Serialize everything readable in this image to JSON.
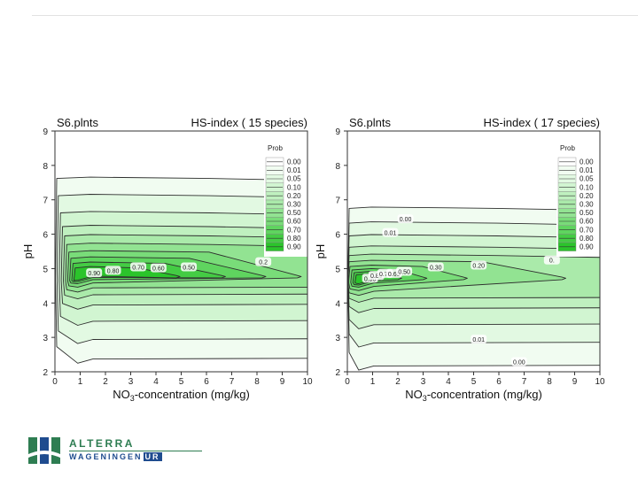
{
  "chart_data": [
    {
      "type": "contour",
      "panel_label": "S6.plnts",
      "title": "HS-index ( 15 species)",
      "xlabel_prefix": "NO",
      "xlabel_sub": "3",
      "xlabel_suffix": "-concentration (mg/kg)",
      "ylabel": "pH",
      "xlim": [
        0,
        10
      ],
      "ylim": [
        2,
        9
      ],
      "x_ticks": [
        "0",
        "1",
        "2",
        "3",
        "4",
        "5",
        "6",
        "7",
        "8",
        "9",
        "10"
      ],
      "y_ticks": [
        "2",
        "3",
        "4",
        "5",
        "6",
        "7",
        "8",
        "9"
      ],
      "peak": [
        1.0,
        4.65
      ],
      "legend_title": "Prob",
      "legend_levels": [
        "0.00",
        "0.01",
        "0.05",
        "0.10",
        "0.20",
        "0.30",
        "0.50",
        "0.60",
        "0.70",
        "0.80",
        "0.90"
      ],
      "legend_colors": [
        "#ffffff",
        "#f1fcf1",
        "#e2f9e2",
        "#d1f5d1",
        "#bff0bf",
        "#aaeaaa",
        "#92e392",
        "#79dc79",
        "#5fd45f",
        "#44cc44",
        "#2bc42b"
      ],
      "band_tops": [
        7.62,
        7.12,
        6.62,
        6.22,
        5.95,
        5.7,
        5.48,
        5.3,
        5.15,
        5.02
      ],
      "band_bottoms": [
        2.25,
        2.82,
        3.35,
        3.82,
        4.12,
        4.32,
        4.46,
        4.56,
        4.62,
        4.66
      ],
      "band_reach": [
        10.5,
        10.5,
        10.5,
        10.5,
        10.5,
        10.5,
        9.6,
        8.2,
        6.6,
        4.8
      ],
      "contour_labels": [
        {
          "text": "0.90",
          "x": 1.55,
          "y": 4.88
        },
        {
          "text": "0.80",
          "x": 2.3,
          "y": 4.95
        },
        {
          "text": "0.70",
          "x": 3.3,
          "y": 5.05
        },
        {
          "text": "0.60",
          "x": 4.1,
          "y": 5.02
        },
        {
          "text": "0.50",
          "x": 5.3,
          "y": 5.05
        },
        {
          "text": "0.2",
          "x": 8.25,
          "y": 5.2
        }
      ]
    },
    {
      "type": "contour",
      "panel_label": "S6.plnts",
      "title": "HS-index ( 17 species)",
      "xlabel_prefix": "NO",
      "xlabel_sub": "3",
      "xlabel_suffix": "-concentration (mg/kg)",
      "ylabel": "pH",
      "xlim": [
        0,
        10
      ],
      "ylim": [
        2,
        9
      ],
      "x_ticks": [
        "0",
        "1",
        "2",
        "3",
        "4",
        "5",
        "6",
        "7",
        "8",
        "9",
        "10"
      ],
      "y_ticks": [
        "2",
        "3",
        "4",
        "5",
        "6",
        "7",
        "8",
        "9"
      ],
      "peak": [
        0.55,
        4.6
      ],
      "legend_title": "Prob",
      "legend_levels": [
        "0.00",
        "0.01",
        "0.05",
        "0.10",
        "0.20",
        "0.30",
        "0.50",
        "0.60",
        "0.70",
        "0.80",
        "0.90"
      ],
      "legend_colors": [
        "#ffffff",
        "#f1fcf1",
        "#e2f9e2",
        "#d1f5d1",
        "#bff0bf",
        "#aaeaaa",
        "#92e392",
        "#79dc79",
        "#5fd45f",
        "#44cc44",
        "#2bc42b"
      ],
      "band_tops": [
        6.75,
        6.32,
        5.95,
        5.62,
        5.38,
        5.2,
        5.06,
        4.96,
        4.88,
        4.82
      ],
      "band_bottoms": [
        2.05,
        2.72,
        3.25,
        3.72,
        4.02,
        4.22,
        4.36,
        4.46,
        4.52,
        4.56
      ],
      "band_reach": [
        10.5,
        10.5,
        10.5,
        10.5,
        10.5,
        8.5,
        4.6,
        3.0,
        2.0,
        1.3
      ],
      "contour_labels": [
        {
          "text": "0.00",
          "x": 2.3,
          "y": 6.45
        },
        {
          "text": "0.01",
          "x": 1.7,
          "y": 6.05
        },
        {
          "text": "0.90",
          "x": 0.9,
          "y": 4.72
        },
        {
          "text": "0.80",
          "x": 1.15,
          "y": 4.8
        },
        {
          "text": "0.70",
          "x": 1.5,
          "y": 4.86
        },
        {
          "text": "0.60",
          "x": 1.85,
          "y": 4.86
        },
        {
          "text": "0.50",
          "x": 2.25,
          "y": 4.92
        },
        {
          "text": "0.30",
          "x": 3.5,
          "y": 5.05
        },
        {
          "text": "0.20",
          "x": 5.2,
          "y": 5.1
        },
        {
          "text": "0.01",
          "x": 5.2,
          "y": 2.95
        },
        {
          "text": "0.00",
          "x": 6.8,
          "y": 2.3
        },
        {
          "text": "0.",
          "x": 8.1,
          "y": 5.25
        }
      ]
    }
  ],
  "logo": {
    "name": "ALTERRA",
    "sub_text": "WAGENINGEN",
    "sub_badge": "UR",
    "green": "#2e7d52",
    "blue": "#1f4c8f"
  }
}
